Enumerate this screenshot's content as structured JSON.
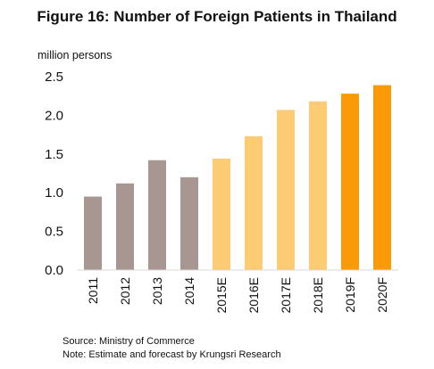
{
  "chart_data": {
    "type": "bar",
    "title": "Figure 16: Number of Foreign Patients in Thailand",
    "ylabel": "million persons",
    "xlabel": "",
    "categories": [
      "2011",
      "2012",
      "2013",
      "2014",
      "2015E",
      "2016E",
      "2017E",
      "2018E",
      "2019F",
      "2020F"
    ],
    "values": [
      0.95,
      1.12,
      1.42,
      1.2,
      1.44,
      1.73,
      2.07,
      2.18,
      2.28,
      2.39
    ],
    "ylim": [
      0,
      2.5
    ],
    "yticks": [
      "0.0",
      "0.5",
      "1.0",
      "1.5",
      "2.0",
      "2.5"
    ],
    "grid": false,
    "colors": [
      "#a89693",
      "#a89693",
      "#a89693",
      "#a89693",
      "#fdcb73",
      "#fdcb73",
      "#fdcb73",
      "#fdcb73",
      "#fa9a08",
      "#fa9a08"
    ]
  },
  "footer": {
    "source": "Source: Ministry of Commerce",
    "note": "Note:  Estimate and forecast by Krungsri Research"
  }
}
